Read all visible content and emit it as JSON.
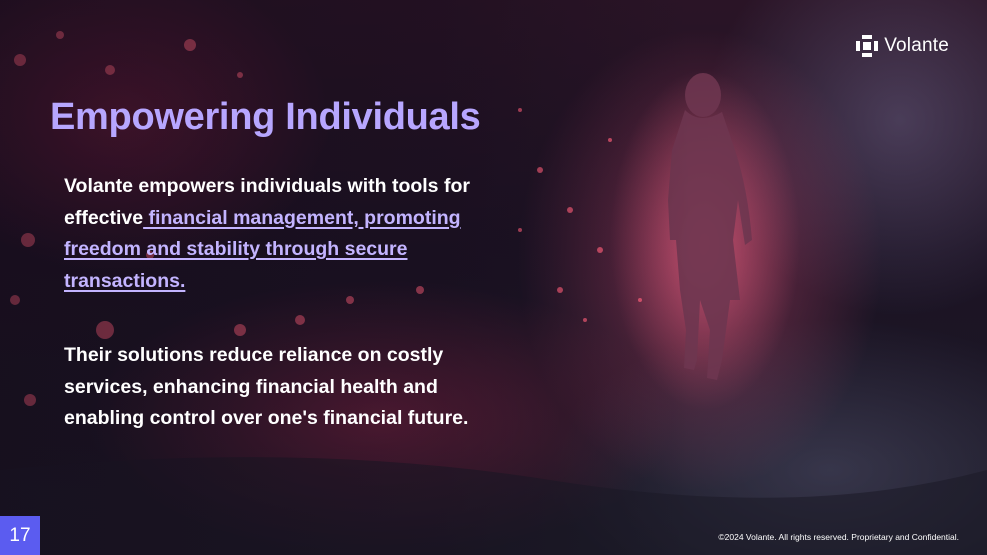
{
  "slide": {
    "title": "Empowering Individuals",
    "paragraph1": {
      "text_before": "Volante empowers individuals with tools for effective",
      "link_text": " financial management, promoting freedom and stability through secure transactions."
    },
    "paragraph2": "Their solutions reduce reliance on costly services, enhancing financial health and enabling control over one's financial future.",
    "page_number": "17",
    "footer": "©2024 Volante. All rights reserved. Proprietary and Confidential."
  },
  "logo": {
    "text": "Volante",
    "icon": "volante-logo-icon"
  },
  "colors": {
    "title": "#b7a6ff",
    "link": "#c3b4ff",
    "page_badge": "#5b5cf0"
  }
}
